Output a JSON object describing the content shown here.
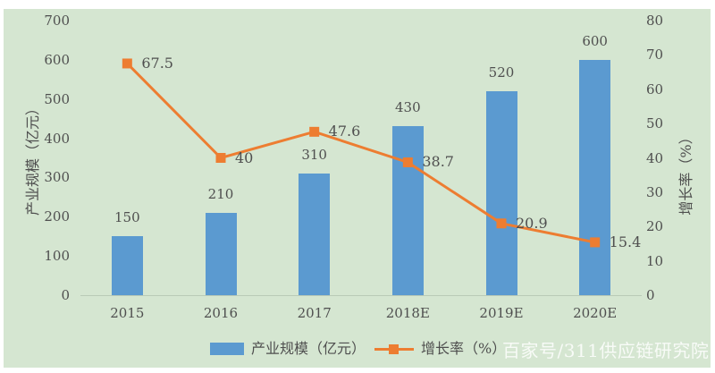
{
  "chart_data": {
    "type": "combo",
    "categories": [
      "2015",
      "2016",
      "2017",
      "2018E",
      "2019E",
      "2020E"
    ],
    "series": [
      {
        "name": "产业规模（亿元）",
        "type": "bar",
        "axis": "left",
        "values": [
          150,
          210,
          310,
          430,
          520,
          600
        ],
        "color": "#5b9ad0"
      },
      {
        "name": "增长率（%）",
        "type": "line",
        "axis": "right",
        "values": [
          67.5,
          40,
          47.6,
          38.7,
          20.9,
          15.4
        ],
        "color": "#ed7d31"
      }
    ],
    "left_axis": {
      "title": "产业规模（亿元）",
      "min": 0,
      "max": 700,
      "ticks": [
        0,
        100,
        200,
        300,
        400,
        500,
        600,
        700
      ]
    },
    "right_axis": {
      "title": "增长率（%）",
      "min": 0,
      "max": 80,
      "ticks": [
        0,
        10,
        20,
        30,
        40,
        50,
        60,
        70,
        80
      ]
    },
    "legend": [
      "产业规模（亿元）",
      "增长率（%）"
    ],
    "background_color": "#d5e6d1",
    "watermark": "百家号/311供应链研究院"
  }
}
